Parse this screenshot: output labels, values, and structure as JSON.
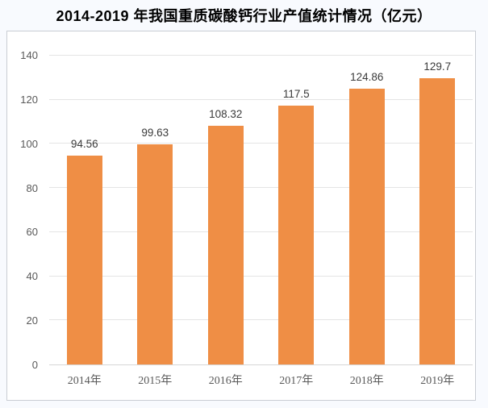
{
  "page": {
    "background_color": "#F8FAFE",
    "chart_box_background": "#FFFFFF",
    "chart_box_border_color": "#C9CDD3"
  },
  "chart_data": {
    "type": "bar",
    "title": "2014-2019 年我国重质碳酸钙行业产值统计情况（亿元）",
    "categories": [
      "2014年",
      "2015年",
      "2016年",
      "2017年",
      "2018年",
      "2019年"
    ],
    "values": [
      94.56,
      99.63,
      108.32,
      117.5,
      124.86,
      129.7
    ],
    "value_labels": [
      "94.56",
      "99.63",
      "108.32",
      "117.5",
      "124.86",
      "129.7"
    ],
    "xlabel": "",
    "ylabel": "",
    "ylim": [
      0,
      140
    ],
    "ytick_step": 20,
    "ytick_labels": [
      "0",
      "20",
      "40",
      "60",
      "80",
      "100",
      "120",
      "140"
    ],
    "grid": true,
    "legend": "none",
    "bar_color": "#EF8E45",
    "value_label_color": "#3A3A3A",
    "axis_tick_color": "#595959",
    "gridline_color": "#E4E4E4"
  }
}
